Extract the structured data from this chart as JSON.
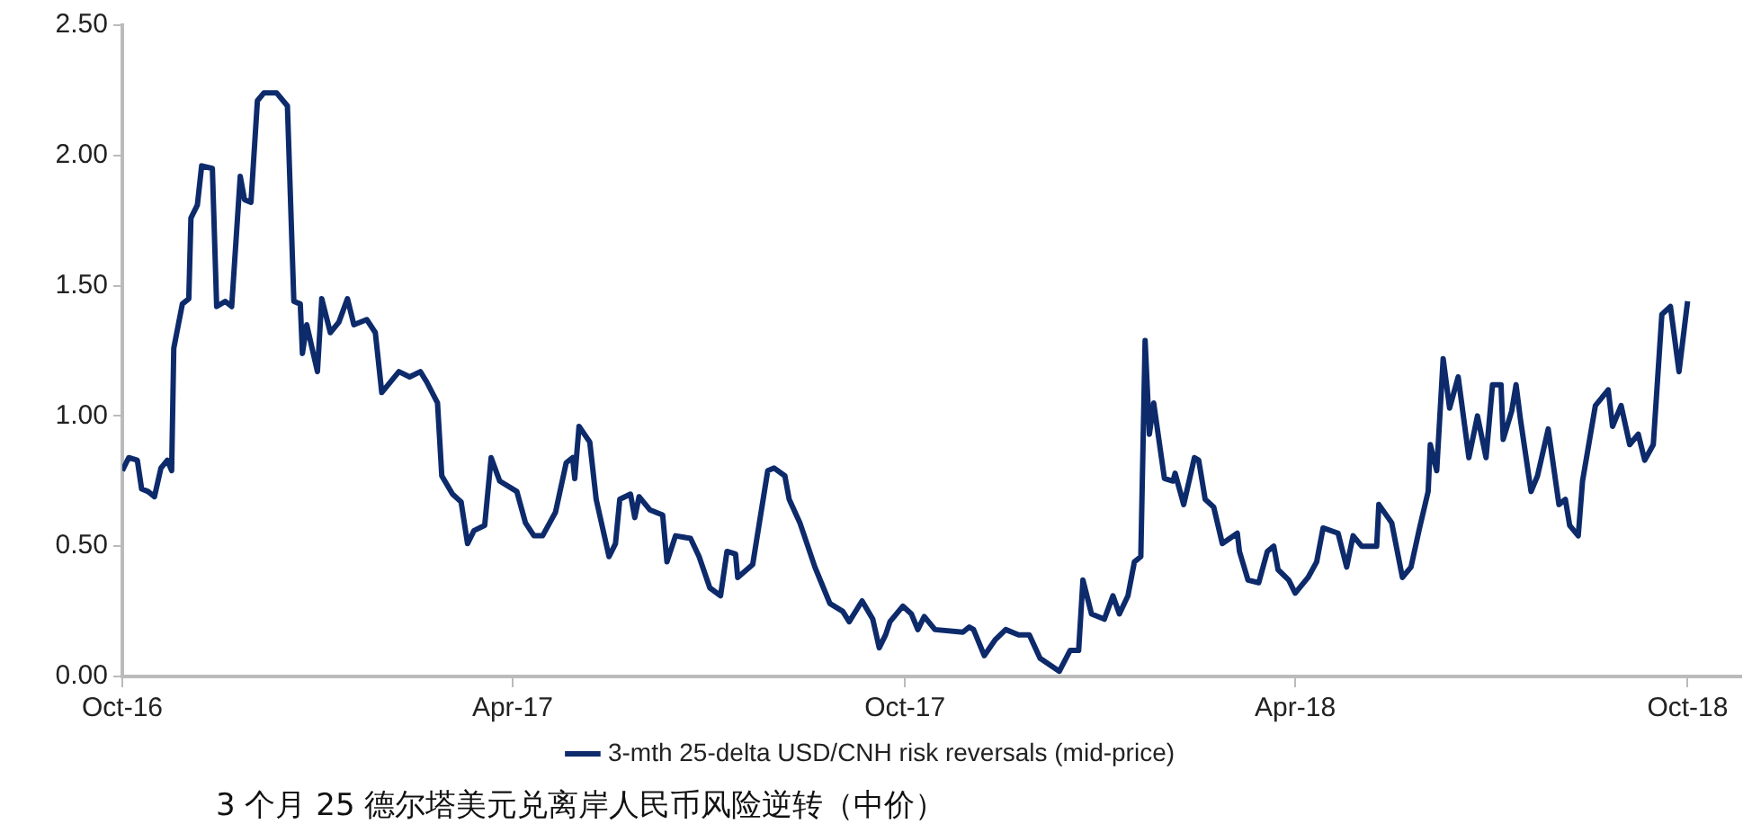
{
  "chart_data": {
    "type": "line",
    "x": [
      "2016-10-01",
      "2016-10-04",
      "2016-10-08",
      "2016-10-10",
      "2016-10-13",
      "2016-10-16",
      "2016-10-19",
      "2016-10-22",
      "2016-10-24",
      "2016-10-25",
      "2016-10-29",
      "2016-11-01",
      "2016-11-02",
      "2016-11-05",
      "2016-11-07",
      "2016-11-12",
      "2016-11-14",
      "2016-11-18",
      "2016-11-21",
      "2016-11-25",
      "2016-11-27",
      "2016-11-30",
      "2016-12-03",
      "2016-12-06",
      "2016-12-12",
      "2016-12-17",
      "2016-12-20",
      "2016-12-23",
      "2016-12-24",
      "2016-12-26",
      "2016-12-31",
      "2017-01-02",
      "2017-01-06",
      "2017-01-10",
      "2017-01-14",
      "2017-01-17",
      "2017-01-23",
      "2017-01-27",
      "2017-01-30",
      "2017-02-07",
      "2017-02-12",
      "2017-02-17",
      "2017-02-20",
      "2017-02-25",
      "2017-02-27",
      "2017-03-04",
      "2017-03-08",
      "2017-03-11",
      "2017-03-14",
      "2017-03-19",
      "2017-03-22",
      "2017-03-26",
      "2017-04-03",
      "2017-04-07",
      "2017-04-11",
      "2017-04-15",
      "2017-04-21",
      "2017-04-26",
      "2017-04-29",
      "2017-04-30",
      "2017-05-02",
      "2017-05-07",
      "2017-05-10",
      "2017-05-16",
      "2017-05-19",
      "2017-05-21",
      "2017-05-26",
      "2017-05-28",
      "2017-05-30",
      "2017-06-04",
      "2017-06-10",
      "2017-06-12",
      "2017-06-16",
      "2017-06-23",
      "2017-06-27",
      "2017-07-02",
      "2017-07-07",
      "2017-07-10",
      "2017-07-14",
      "2017-07-15",
      "2017-07-22",
      "2017-07-29",
      "2017-08-01",
      "2017-08-06",
      "2017-08-08",
      "2017-08-13",
      "2017-08-20",
      "2017-08-23",
      "2017-08-27",
      "2017-09-02",
      "2017-09-05",
      "2017-09-11",
      "2017-09-16",
      "2017-09-19",
      "2017-09-22",
      "2017-09-24",
      "2017-09-30",
      "2017-10-04",
      "2017-10-07",
      "2017-10-10",
      "2017-10-15",
      "2017-10-28",
      "2017-10-31",
      "2017-11-02",
      "2017-11-07",
      "2017-11-12",
      "2017-11-17",
      "2017-11-23",
      "2017-11-28",
      "2017-12-03",
      "2017-12-12",
      "2017-12-17",
      "2017-12-21",
      "2017-12-23",
      "2017-12-27",
      "2018-01-02",
      "2018-01-06",
      "2018-01-09",
      "2018-01-13",
      "2018-01-16",
      "2018-01-19",
      "2018-01-21",
      "2018-01-23",
      "2018-01-25",
      "2018-01-30",
      "2018-02-03",
      "2018-02-04",
      "2018-02-08",
      "2018-02-13",
      "2018-02-15",
      "2018-02-18",
      "2018-02-22",
      "2018-02-26",
      "2018-03-05",
      "2018-03-06",
      "2018-03-10",
      "2018-03-15",
      "2018-03-19",
      "2018-03-22",
      "2018-03-24",
      "2018-03-29",
      "2018-04-01",
      "2018-04-07",
      "2018-04-11",
      "2018-04-14",
      "2018-04-21",
      "2018-04-25",
      "2018-04-28",
      "2018-05-02",
      "2018-05-09",
      "2018-05-10",
      "2018-05-16",
      "2018-05-21",
      "2018-05-25",
      "2018-05-29",
      "2018-06-02",
      "2018-06-03",
      "2018-06-06",
      "2018-06-09",
      "2018-06-12",
      "2018-06-16",
      "2018-06-21",
      "2018-06-25",
      "2018-06-29",
      "2018-07-02",
      "2018-07-06",
      "2018-07-07",
      "2018-07-11",
      "2018-07-13",
      "2018-07-15",
      "2018-07-20",
      "2018-07-23",
      "2018-07-28",
      "2018-08-02",
      "2018-08-05",
      "2018-08-07",
      "2018-08-11",
      "2018-08-13",
      "2018-08-19",
      "2018-08-25",
      "2018-08-27",
      "2018-08-31",
      "2018-09-04",
      "2018-09-08",
      "2018-09-11",
      "2018-09-15",
      "2018-09-19",
      "2018-09-23",
      "2018-09-27",
      "2018-10-01"
    ],
    "series": [
      {
        "name": "3-mth 25-delta USD/CNH risk reversals (mid-price)",
        "color": "#0d2a6b",
        "values": [
          0.79,
          0.84,
          0.83,
          0.72,
          0.71,
          0.69,
          0.8,
          0.83,
          0.79,
          1.26,
          1.43,
          1.45,
          1.76,
          1.81,
          1.96,
          1.95,
          1.42,
          1.44,
          1.42,
          1.92,
          1.83,
          1.82,
          2.21,
          2.24,
          2.24,
          2.19,
          1.44,
          1.43,
          1.24,
          1.35,
          1.17,
          1.45,
          1.32,
          1.36,
          1.45,
          1.35,
          1.37,
          1.32,
          1.09,
          1.17,
          1.15,
          1.17,
          1.13,
          1.05,
          0.77,
          0.7,
          0.67,
          0.51,
          0.56,
          0.58,
          0.84,
          0.75,
          0.71,
          0.59,
          0.54,
          0.54,
          0.63,
          0.82,
          0.84,
          0.76,
          0.96,
          0.9,
          0.68,
          0.46,
          0.51,
          0.68,
          0.7,
          0.61,
          0.69,
          0.64,
          0.62,
          0.44,
          0.54,
          0.53,
          0.46,
          0.34,
          0.31,
          0.48,
          0.47,
          0.38,
          0.43,
          0.79,
          0.8,
          0.77,
          0.68,
          0.59,
          0.42,
          0.36,
          0.28,
          0.25,
          0.21,
          0.29,
          0.22,
          0.11,
          0.16,
          0.21,
          0.27,
          0.24,
          0.18,
          0.23,
          0.18,
          0.17,
          0.19,
          0.18,
          0.08,
          0.14,
          0.18,
          0.16,
          0.16,
          0.07,
          0.02,
          0.1,
          0.1,
          0.37,
          0.24,
          0.22,
          0.31,
          0.24,
          0.31,
          0.44,
          0.46,
          1.29,
          0.93,
          1.05,
          0.76,
          0.75,
          0.78,
          0.66,
          0.84,
          0.83,
          0.68,
          0.65,
          0.51,
          0.55,
          0.48,
          0.37,
          0.36,
          0.48,
          0.5,
          0.41,
          0.37,
          0.32,
          0.38,
          0.44,
          0.57,
          0.55,
          0.42,
          0.54,
          0.5,
          0.5,
          0.66,
          0.59,
          0.38,
          0.42,
          0.57,
          0.71,
          0.89,
          0.79,
          1.22,
          1.03,
          1.15,
          0.84,
          1.0,
          0.84,
          1.12,
          1.12,
          0.91,
          1.02,
          1.12,
          0.99,
          0.71,
          0.77,
          0.95,
          0.66,
          0.68,
          0.58,
          0.54,
          0.75,
          1.04,
          1.1,
          0.96,
          1.04,
          0.89,
          0.93,
          0.83,
          0.89,
          1.39,
          1.42,
          1.17,
          1.44
        ]
      }
    ],
    "xlim": [
      "2016-10-01",
      "2018-10-26"
    ],
    "xticks": [
      {
        "value": "2016-10-01",
        "label": "Oct-16"
      },
      {
        "value": "2017-04-01",
        "label": "Apr-17"
      },
      {
        "value": "2017-10-01",
        "label": "Oct-17"
      },
      {
        "value": "2018-04-01",
        "label": "Apr-18"
      },
      {
        "value": "2018-10-01",
        "label": "Oct-18"
      }
    ],
    "ylim": [
      0,
      2.5
    ],
    "yticks": [
      {
        "value": 0,
        "label": "0.00"
      },
      {
        "value": 0.5,
        "label": "0.50"
      },
      {
        "value": 1,
        "label": "1.00"
      },
      {
        "value": 1.5,
        "label": "1.50"
      },
      {
        "value": 2,
        "label": "2.00"
      },
      {
        "value": 2.5,
        "label": "2.50"
      }
    ],
    "grid": false,
    "legend": "bottom",
    "marker": "none",
    "line_style": "solid",
    "annotations": [
      "3 个月 25 德尔塔美元兑离岸人民币风险逆转（中价）"
    ]
  }
}
